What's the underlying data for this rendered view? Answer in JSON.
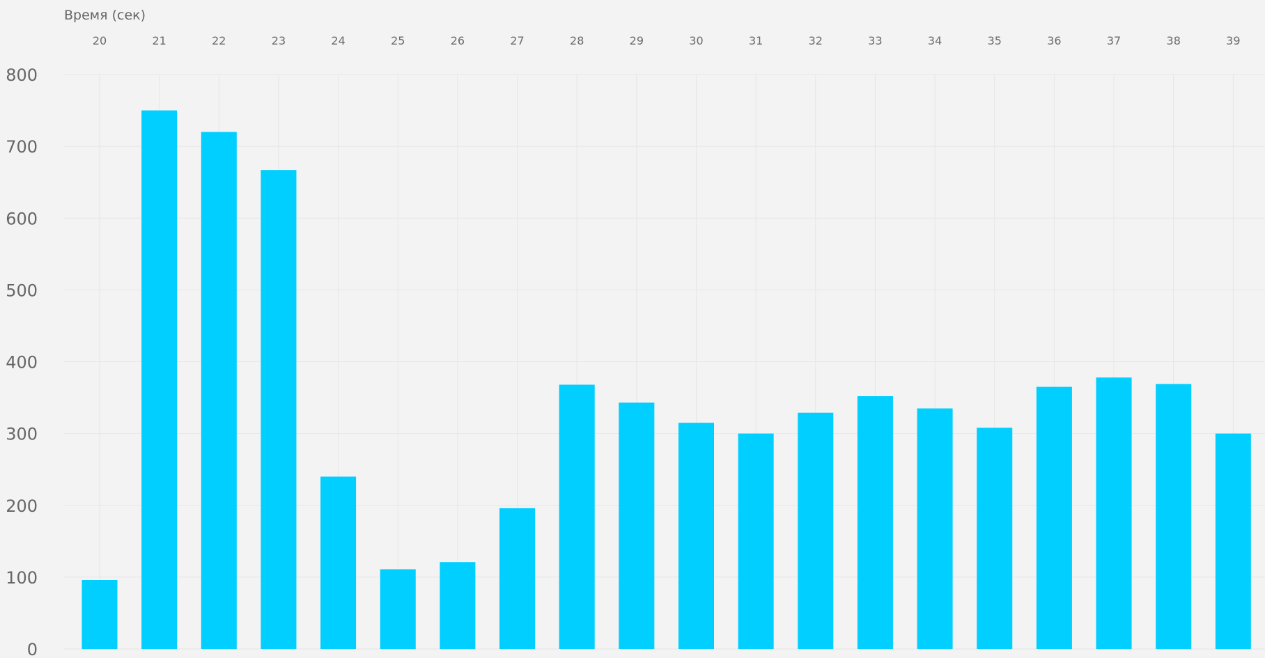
{
  "chart_data": {
    "type": "bar",
    "xlabel": "Время (сек)",
    "categories": [
      "20",
      "21",
      "22",
      "23",
      "24",
      "25",
      "26",
      "27",
      "28",
      "29",
      "30",
      "31",
      "32",
      "33",
      "34",
      "35",
      "36",
      "37",
      "38",
      "39"
    ],
    "values": [
      96,
      750,
      720,
      667,
      240,
      111,
      121,
      196,
      368,
      343,
      315,
      300,
      329,
      352,
      335,
      308,
      365,
      378,
      369,
      300
    ],
    "ylim": [
      0,
      800
    ],
    "yticks": [
      0,
      100,
      200,
      300,
      400,
      500,
      600,
      700,
      800
    ],
    "x_axis_position": "top",
    "grid": true,
    "bar_color": "#00cfff",
    "background_color": "#f3f3f3",
    "grid_color": "#e6e6e6"
  }
}
